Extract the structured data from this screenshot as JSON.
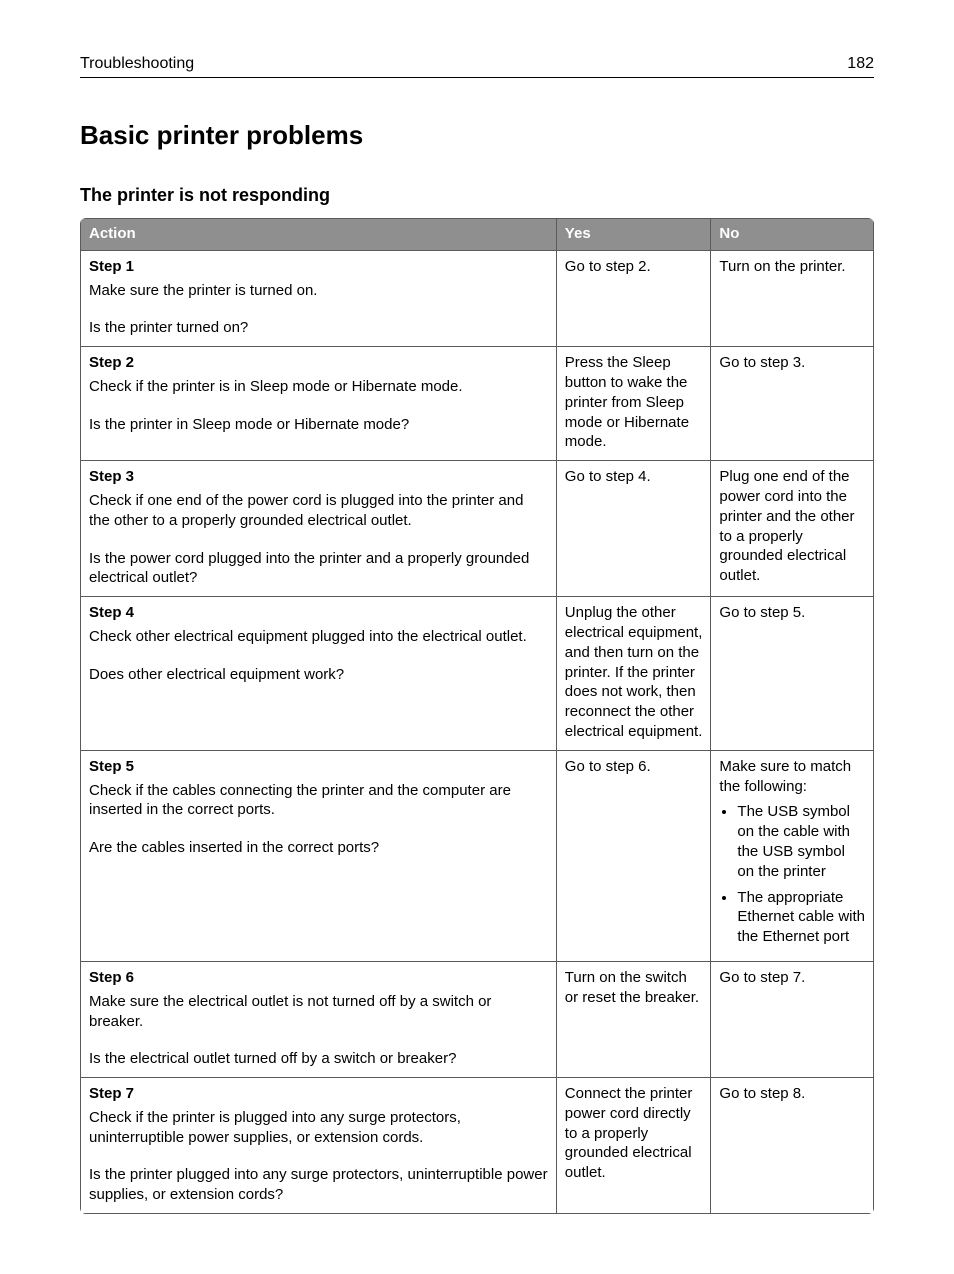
{
  "header": {
    "section": "Troubleshooting",
    "page_number": "182"
  },
  "title": "Basic printer problems",
  "subtitle": "The printer is not responding",
  "table": {
    "columns": {
      "action": "Action",
      "yes": "Yes",
      "no": "No"
    },
    "rows": [
      {
        "step": "Step 1",
        "desc": "Make sure the printer is turned on.",
        "question": "Is the printer turned on?",
        "yes": "Go to step 2.",
        "no": "Turn on the printer."
      },
      {
        "step": "Step 2",
        "desc": "Check if the printer is in Sleep mode or Hibernate mode.",
        "question": "Is the printer in Sleep mode or Hibernate mode?",
        "yes": "Press the Sleep button to wake the printer from Sleep mode or Hibernate mode.",
        "no": "Go to step 3."
      },
      {
        "step": "Step 3",
        "desc": "Check if one end of the power cord is plugged into the printer and the other to a properly grounded electrical outlet.",
        "question": "Is the power cord plugged into the printer and a properly grounded electrical outlet?",
        "yes": "Go to step 4.",
        "no": "Plug one end of the power cord into the printer and the other to a properly grounded electrical outlet."
      },
      {
        "step": "Step 4",
        "desc": "Check other electrical equipment plugged into the electrical outlet.",
        "question": "Does other electrical equipment work?",
        "yes": "Unplug the other electrical equipment, and then turn on the printer. If the printer does not work, then reconnect the other electrical equipment.",
        "no": "Go to step 5."
      },
      {
        "step": "Step 5",
        "desc": "Check if the cables connecting the printer and the computer are inserted in the correct ports.",
        "question": "Are the cables inserted in the correct ports?",
        "yes": "Go to step 6.",
        "no_intro": "Make sure to match the following:",
        "no_bullets": [
          "The USB symbol on the cable with the USB symbol on the printer",
          "The appropriate Ethernet cable with the Ethernet port"
        ]
      },
      {
        "step": "Step 6",
        "desc": "Make sure the electrical outlet is not turned off by a switch or breaker.",
        "question": "Is the electrical outlet turned off by a switch or breaker?",
        "yes": "Turn on the switch or reset the breaker.",
        "no": "Go to step 7."
      },
      {
        "step": "Step 7",
        "desc": "Check if the printer is plugged into any surge protectors, uninterruptible power supplies, or extension cords.",
        "question": "Is the printer plugged into any surge protectors, uninterruptible power supplies, or extension cords?",
        "yes": "Connect the printer power cord directly to a properly grounded electrical outlet.",
        "no": "Go to step 8."
      }
    ]
  }
}
